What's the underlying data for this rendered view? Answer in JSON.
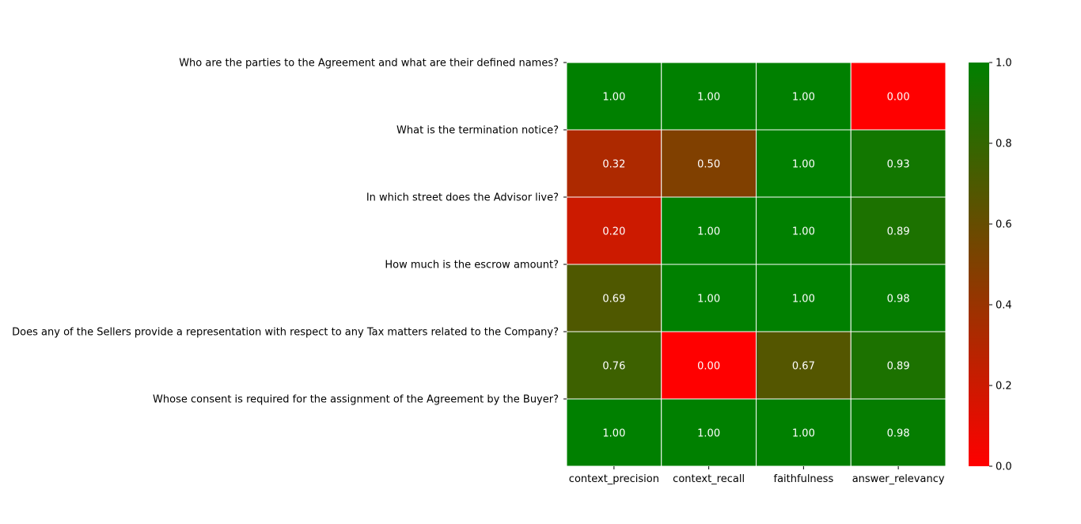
{
  "chart_data": {
    "type": "heatmap",
    "rows": [
      "Who are the parties to the Agreement and what are their defined names?",
      "What is the termination notice?",
      "In which street does the Advisor live?",
      "How much is the escrow amount?",
      "Does any of the Sellers provide a representation with respect to any Tax matters related to the Company?",
      "Whose consent is required for the assignment of the Agreement by the Buyer?"
    ],
    "columns": [
      "context_precision",
      "context_recall",
      "faithfulness",
      "answer_relevancy"
    ],
    "values": [
      [
        1.0,
        1.0,
        1.0,
        0.0
      ],
      [
        0.32,
        0.5,
        1.0,
        0.93
      ],
      [
        0.2,
        1.0,
        1.0,
        0.89
      ],
      [
        0.69,
        1.0,
        1.0,
        0.98
      ],
      [
        0.76,
        0.0,
        0.67,
        0.89
      ],
      [
        1.0,
        1.0,
        1.0,
        0.98
      ]
    ],
    "cell_labels": [
      [
        "1.00",
        "1.00",
        "1.00",
        "0.00"
      ],
      [
        "0.32",
        "0.50",
        "1.00",
        "0.93"
      ],
      [
        "0.20",
        "1.00",
        "1.00",
        "0.89"
      ],
      [
        "0.69",
        "1.00",
        "1.00",
        "0.98"
      ],
      [
        "0.76",
        "0.00",
        "0.67",
        "0.89"
      ],
      [
        "1.00",
        "1.00",
        "1.00",
        "0.98"
      ]
    ],
    "colorbar": {
      "range": [
        0,
        1
      ],
      "ticks": [
        "0.0",
        "0.2",
        "0.4",
        "0.6",
        "0.8",
        "1.0"
      ],
      "low_color": "#ff0000",
      "high_color": "#008000"
    },
    "grid": true,
    "annot_color": "#ffffff"
  }
}
